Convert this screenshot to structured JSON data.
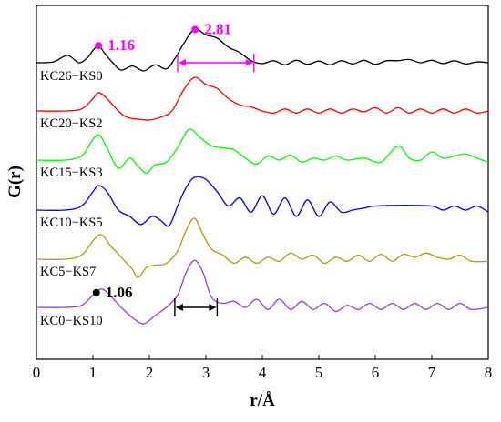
{
  "chart_data": {
    "type": "line",
    "title": "",
    "xlabel": "r/Å",
    "ylabel": "G(r)",
    "xlim": [
      0,
      8
    ],
    "xticks": [
      "0",
      "1",
      "2",
      "3",
      "4",
      "5",
      "6",
      "7",
      "8"
    ],
    "grid": false,
    "legend": "inline labels",
    "series": [
      {
        "name": "KC26−KS0",
        "color": "#000000",
        "x": [
          0,
          0.3,
          0.55,
          0.75,
          0.9,
          1.0,
          1.1,
          1.2,
          1.35,
          1.5,
          1.7,
          1.9,
          2.1,
          2.3,
          2.45,
          2.6,
          2.8,
          3.0,
          3.2,
          3.4,
          3.6,
          3.8,
          4.0,
          4.2,
          4.4,
          4.6,
          4.8,
          5.0,
          5.2,
          5.4,
          5.6,
          5.8,
          6.0,
          6.2,
          6.4,
          6.6,
          6.8,
          7.0,
          7.2,
          7.4,
          7.6,
          7.8,
          8.0
        ],
        "y": [
          0,
          0.02,
          0.18,
          0.0,
          0.12,
          0.3,
          0.42,
          0.25,
          0.0,
          -0.18,
          -0.08,
          -0.2,
          -0.05,
          -0.15,
          0.1,
          0.45,
          0.82,
          0.68,
          0.6,
          0.38,
          0.25,
          0.05,
          -0.02,
          0.05,
          -0.05,
          0.06,
          -0.04,
          0.04,
          -0.05,
          0.05,
          -0.03,
          0.06,
          -0.04,
          0.05,
          0.05,
          0.08,
          0.0,
          0.06,
          -0.02,
          0.05,
          -0.03,
          0.02,
          0.0
        ]
      },
      {
        "name": "KC20−KS2",
        "color": "#ff0000",
        "x": [
          0,
          0.5,
          0.8,
          1.0,
          1.1,
          1.25,
          1.45,
          1.6,
          1.8,
          2.0,
          2.2,
          2.4,
          2.6,
          2.8,
          3.0,
          3.2,
          3.4,
          3.6,
          3.8,
          4.0,
          4.2,
          4.4,
          4.6,
          4.8,
          5.0,
          5.2,
          5.4,
          5.6,
          5.8,
          6.0,
          6.2,
          6.4,
          6.6,
          6.8,
          7.0,
          7.2,
          7.4,
          7.6,
          7.8,
          8.0
        ],
        "y": [
          0,
          0.0,
          0.05,
          0.3,
          0.45,
          0.3,
          0.0,
          -0.15,
          -0.2,
          -0.22,
          -0.15,
          0.0,
          0.5,
          0.82,
          0.65,
          0.55,
          0.3,
          0.15,
          0.1,
          0.0,
          -0.05,
          0.05,
          -0.05,
          0.05,
          -0.05,
          0.05,
          -0.05,
          0.05,
          -0.02,
          0.08,
          -0.05,
          0.08,
          -0.05,
          0.05,
          -0.05,
          0.05,
          -0.05,
          0.05,
          -0.05,
          0.0
        ]
      },
      {
        "name": "KC15−KS3",
        "color": "#00ff00",
        "x": [
          0,
          0.5,
          0.8,
          0.95,
          1.1,
          1.25,
          1.45,
          1.65,
          1.8,
          1.95,
          2.1,
          2.3,
          2.5,
          2.7,
          2.9,
          3.1,
          3.3,
          3.5,
          3.7,
          3.9,
          4.1,
          4.3,
          4.5,
          4.7,
          4.9,
          5.1,
          5.3,
          5.5,
          5.8,
          6.1,
          6.4,
          6.6,
          6.8,
          7.0,
          7.2,
          7.4,
          7.6,
          7.8,
          8.0
        ],
        "y": [
          0,
          0.0,
          0.1,
          0.4,
          0.62,
          0.3,
          -0.2,
          0.05,
          -0.15,
          -0.32,
          -0.12,
          -0.05,
          0.3,
          0.75,
          0.55,
          0.35,
          0.3,
          0.25,
          0.05,
          -0.1,
          0.1,
          0.0,
          0.12,
          -0.05,
          0.05,
          0.0,
          0.1,
          0.0,
          0.05,
          -0.05,
          0.35,
          0.05,
          0.0,
          0.2,
          0.05,
          0.1,
          0.15,
          0.05,
          -0.05
        ]
      },
      {
        "name": "KC10−KS5",
        "color": "#0000ff",
        "x": [
          0,
          0.5,
          0.8,
          1.0,
          1.1,
          1.25,
          1.45,
          1.65,
          1.85,
          2.05,
          2.2,
          2.35,
          2.5,
          2.65,
          2.8,
          3.0,
          3.2,
          3.4,
          3.6,
          3.8,
          4.0,
          4.2,
          4.4,
          4.6,
          4.8,
          5.0,
          5.2,
          5.4,
          5.6,
          5.8,
          6.0,
          6.5,
          7.0,
          7.2,
          7.4,
          7.6,
          7.8,
          8.0
        ],
        "y": [
          0,
          0.0,
          0.1,
          0.45,
          0.6,
          0.45,
          0.0,
          -0.15,
          -0.35,
          -0.15,
          -0.25,
          -0.38,
          0.1,
          0.55,
          0.8,
          0.75,
          0.45,
          0.1,
          0.3,
          -0.05,
          0.35,
          -0.1,
          0.3,
          -0.15,
          0.25,
          -0.15,
          0.2,
          -0.05,
          0.0,
          0.05,
          0.1,
          0.12,
          0.1,
          0.0,
          0.1,
          0.0,
          0.1,
          -0.05
        ]
      },
      {
        "name": "KC5−KS7",
        "color": "#b8960c",
        "x": [
          0,
          0.5,
          0.8,
          1.0,
          1.15,
          1.3,
          1.5,
          1.7,
          1.8,
          1.95,
          2.1,
          2.3,
          2.5,
          2.65,
          2.8,
          2.95,
          3.1,
          3.3,
          3.5,
          3.7,
          3.9,
          4.1,
          4.3,
          4.5,
          4.7,
          4.9,
          5.1,
          5.3,
          5.5,
          5.7,
          5.9,
          6.1,
          6.3,
          6.5,
          6.7,
          6.9,
          7.1,
          7.3,
          7.5,
          7.7,
          8.0
        ],
        "y": [
          0,
          0.0,
          0.1,
          0.45,
          0.6,
          0.35,
          0.05,
          -0.25,
          -0.45,
          -0.2,
          -0.15,
          -0.1,
          0.2,
          0.7,
          1.0,
          0.6,
          0.25,
          0.1,
          -0.1,
          0.05,
          -0.1,
          0.05,
          -0.05,
          0.15,
          0.0,
          0.1,
          -0.1,
          0.05,
          -0.05,
          0.1,
          -0.05,
          0.12,
          -0.05,
          0.12,
          0.05,
          0.15,
          0.05,
          0.0,
          0.1,
          -0.05,
          -0.05
        ]
      },
      {
        "name": "KC0−KS10",
        "color": "#a040d0",
        "x": [
          0,
          0.5,
          0.8,
          1.0,
          1.15,
          1.3,
          1.5,
          1.7,
          1.9,
          2.1,
          2.3,
          2.5,
          2.65,
          2.8,
          2.95,
          3.1,
          3.3,
          3.5,
          3.7,
          3.9,
          4.1,
          4.3,
          4.5,
          4.7,
          4.9,
          5.1,
          5.3,
          5.5,
          5.7,
          5.9,
          6.1,
          6.3,
          6.5,
          6.7,
          6.9,
          7.1,
          7.3,
          7.5,
          7.7,
          8.0
        ],
        "y": [
          0,
          0.0,
          0.05,
          0.3,
          0.45,
          0.3,
          0.0,
          -0.25,
          -0.4,
          -0.2,
          0.0,
          0.3,
          0.85,
          1.15,
          0.85,
          0.25,
          0.1,
          0.15,
          0.0,
          0.2,
          -0.05,
          0.2,
          -0.05,
          0.15,
          -0.05,
          0.1,
          -0.1,
          0.05,
          -0.05,
          0.1,
          -0.05,
          0.1,
          -0.05,
          0.1,
          -0.05,
          0.1,
          -0.05,
          0.1,
          -0.05,
          0.0
        ]
      }
    ],
    "annotations": [
      {
        "text": "1.16",
        "series": "KC26−KS0",
        "x": 1.1,
        "color": "#ff00ff"
      },
      {
        "text": "2.81",
        "series": "KC26−KS0",
        "x": 2.81,
        "color": "#ff00ff"
      },
      {
        "text": "1.06",
        "series": "KC0−KS10",
        "x": 1.06,
        "color": "#000000"
      }
    ],
    "range_markers": [
      {
        "series": "KC26−KS0",
        "x1": 2.5,
        "x2": 3.85,
        "color": "#ff00ff"
      },
      {
        "series": "KC0−KS10",
        "x1": 2.45,
        "x2": 3.2,
        "color": "#000000"
      }
    ]
  }
}
